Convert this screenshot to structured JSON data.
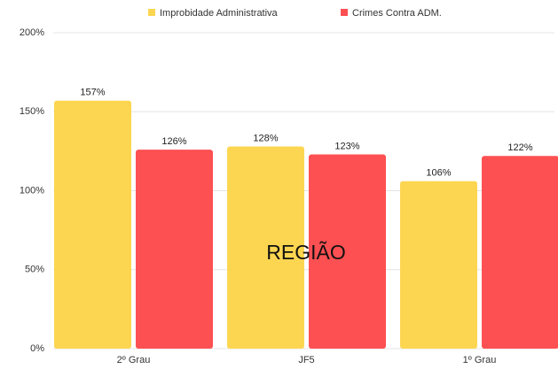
{
  "chart_data": {
    "type": "bar",
    "categories": [
      "2º Grau",
      "JF5",
      "1º Grau"
    ],
    "series": [
      {
        "name": "Improbidade Administrativa",
        "color": "#fdd651",
        "values": [
          157,
          128,
          106
        ],
        "value_labels": [
          "157%",
          "128%",
          "106%"
        ]
      },
      {
        "name": "Crimes Contra ADM.",
        "color": "#fd5052",
        "values": [
          126,
          123,
          122
        ],
        "value_labels": [
          "126%",
          "123%",
          "122%"
        ]
      }
    ],
    "ylim": [
      0,
      200
    ],
    "yticks": [
      {
        "value": 0,
        "label": "0%"
      },
      {
        "value": 50,
        "label": "50%"
      },
      {
        "value": 100,
        "label": "100%"
      },
      {
        "value": 150,
        "label": "150%"
      },
      {
        "value": 200,
        "label": "200%"
      }
    ],
    "grid": true,
    "legend": "top",
    "annotation": "REGIÃO"
  }
}
